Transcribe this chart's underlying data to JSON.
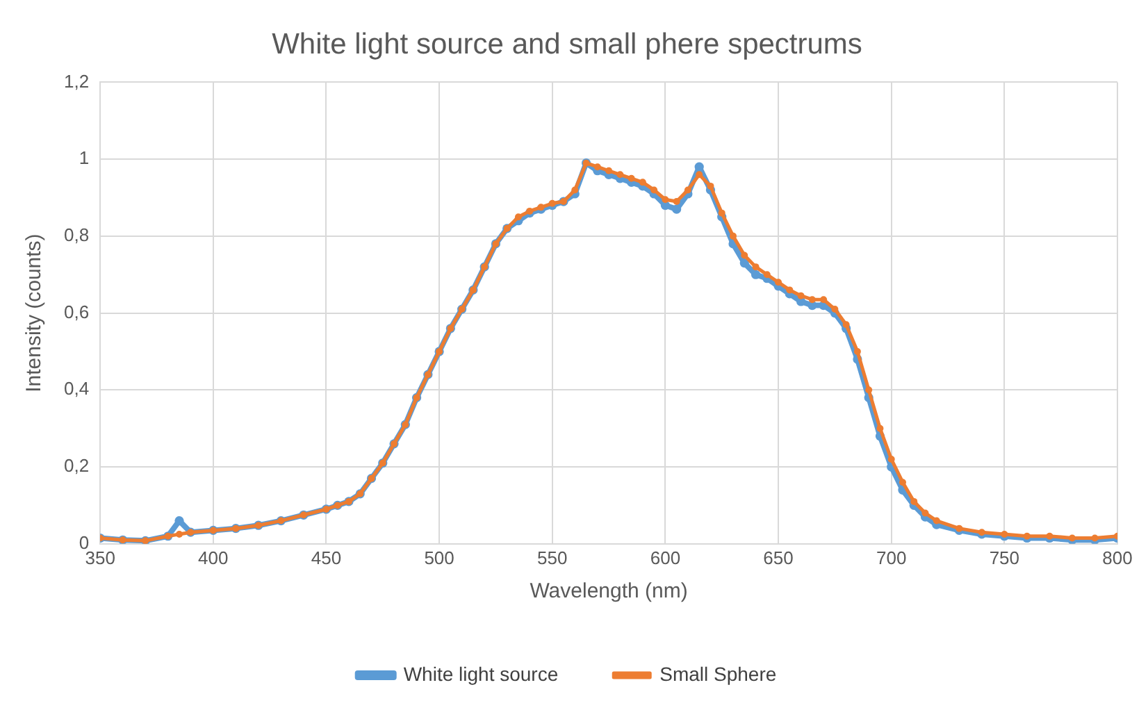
{
  "chart_data": {
    "type": "line",
    "title": "White light source and small phere spectrums",
    "xlabel": "Wavelength (nm)",
    "ylabel": "Intensity (counts)",
    "x": [
      350,
      360,
      370,
      380,
      385,
      390,
      400,
      410,
      420,
      430,
      440,
      450,
      455,
      460,
      465,
      470,
      475,
      480,
      485,
      490,
      495,
      500,
      505,
      510,
      515,
      520,
      525,
      530,
      535,
      540,
      545,
      550,
      555,
      560,
      565,
      570,
      575,
      580,
      585,
      590,
      595,
      600,
      605,
      610,
      615,
      620,
      625,
      630,
      635,
      640,
      645,
      650,
      655,
      660,
      665,
      670,
      675,
      680,
      685,
      690,
      695,
      700,
      705,
      710,
      715,
      720,
      730,
      740,
      750,
      760,
      770,
      780,
      790,
      800
    ],
    "series": [
      {
        "name": "White light source",
        "color": "#5b9bd5",
        "values": [
          0.015,
          0.01,
          0.008,
          0.02,
          0.06,
          0.03,
          0.035,
          0.04,
          0.048,
          0.06,
          0.075,
          0.09,
          0.1,
          0.11,
          0.13,
          0.17,
          0.21,
          0.26,
          0.31,
          0.38,
          0.44,
          0.5,
          0.56,
          0.61,
          0.66,
          0.72,
          0.78,
          0.82,
          0.84,
          0.86,
          0.87,
          0.88,
          0.89,
          0.91,
          0.99,
          0.97,
          0.96,
          0.95,
          0.94,
          0.93,
          0.91,
          0.88,
          0.87,
          0.91,
          0.98,
          0.92,
          0.85,
          0.78,
          0.73,
          0.7,
          0.69,
          0.67,
          0.65,
          0.63,
          0.62,
          0.62,
          0.6,
          0.56,
          0.48,
          0.38,
          0.28,
          0.2,
          0.14,
          0.1,
          0.07,
          0.05,
          0.035,
          0.025,
          0.02,
          0.015,
          0.015,
          0.01,
          0.01,
          0.015
        ]
      },
      {
        "name": "Small Sphere",
        "color": "#ed7d31",
        "values": [
          0.015,
          0.01,
          0.008,
          0.02,
          0.025,
          0.03,
          0.035,
          0.04,
          0.048,
          0.06,
          0.075,
          0.09,
          0.1,
          0.11,
          0.13,
          0.17,
          0.21,
          0.26,
          0.31,
          0.38,
          0.44,
          0.5,
          0.56,
          0.61,
          0.66,
          0.72,
          0.78,
          0.82,
          0.85,
          0.865,
          0.875,
          0.885,
          0.89,
          0.92,
          0.99,
          0.98,
          0.97,
          0.96,
          0.95,
          0.94,
          0.92,
          0.895,
          0.89,
          0.92,
          0.96,
          0.93,
          0.86,
          0.8,
          0.75,
          0.72,
          0.7,
          0.68,
          0.66,
          0.645,
          0.635,
          0.635,
          0.61,
          0.57,
          0.5,
          0.4,
          0.3,
          0.22,
          0.16,
          0.11,
          0.08,
          0.06,
          0.04,
          0.03,
          0.025,
          0.02,
          0.02,
          0.015,
          0.015,
          0.02
        ]
      }
    ],
    "xlim": [
      350,
      800
    ],
    "xticks": [
      350,
      400,
      450,
      500,
      550,
      600,
      650,
      700,
      750,
      800
    ],
    "ylim": [
      0,
      1.2
    ],
    "yticks": [
      0,
      {
        "value": 0.2,
        "label": "0,2"
      },
      {
        "value": 0.4,
        "label": "0,4"
      },
      {
        "value": 0.6,
        "label": "0,6"
      },
      {
        "value": 0.8,
        "label": "0,8"
      },
      1,
      {
        "value": 1.2,
        "label": "1,2"
      }
    ],
    "grid": true,
    "legend": "bottom",
    "marker": "circle",
    "line_style": "solid"
  }
}
